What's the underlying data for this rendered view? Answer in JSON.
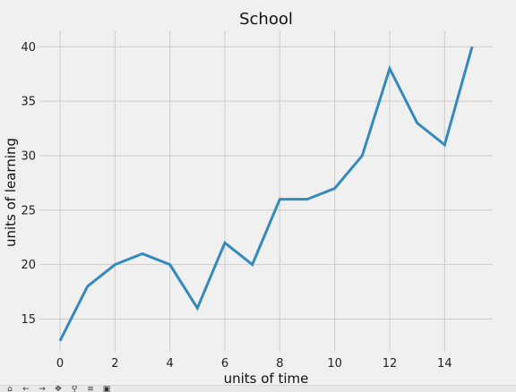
{
  "chart_data": {
    "type": "line",
    "title": "School",
    "xlabel": "units of time",
    "ylabel": "units of learning",
    "x": [
      0,
      1,
      2,
      3,
      4,
      5,
      6,
      7,
      8,
      9,
      10,
      11,
      12,
      13,
      14,
      15
    ],
    "series": [
      {
        "values": [
          13,
          18,
          20,
          21,
          20,
          16,
          22,
          20,
          26,
          26,
          27,
          30,
          38,
          33,
          31,
          40
        ]
      }
    ],
    "xlim": [
      -0.75,
      15.75
    ],
    "ylim": [
      12.0,
      41.5
    ],
    "xticks": [
      0,
      2,
      4,
      6,
      8,
      10,
      12,
      14
    ],
    "yticks": [
      15,
      20,
      25,
      30,
      35,
      40
    ],
    "grid": true,
    "colors": {
      "line": "#348abd",
      "background": "#f0f0f0",
      "grid": "#cbcbcb"
    }
  },
  "toolbar": {
    "icons": [
      "home-icon",
      "back-icon",
      "forward-icon",
      "pan-icon",
      "zoom-icon",
      "configure-icon",
      "save-icon"
    ]
  }
}
